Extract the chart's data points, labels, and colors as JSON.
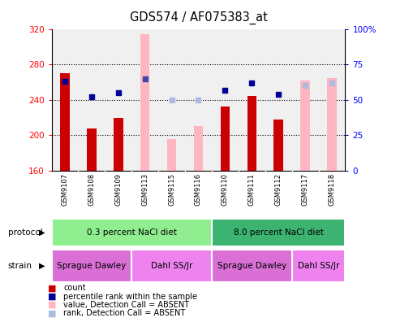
{
  "title": "GDS574 / AF075383_at",
  "samples": [
    "GSM9107",
    "GSM9108",
    "GSM9109",
    "GSM9113",
    "GSM9115",
    "GSM9116",
    "GSM9110",
    "GSM9111",
    "GSM9112",
    "GSM9117",
    "GSM9118"
  ],
  "count_present": [
    270,
    208,
    220,
    null,
    null,
    null,
    232,
    244,
    218,
    null,
    null
  ],
  "count_absent": [
    null,
    null,
    null,
    314,
    196,
    210,
    null,
    null,
    null,
    262,
    265
  ],
  "rank_present": [
    63,
    52,
    55,
    null,
    null,
    null,
    57,
    62,
    54,
    null,
    null
  ],
  "rank_absent_dark": [
    null,
    null,
    null,
    65,
    null,
    null,
    null,
    null,
    null,
    null,
    null
  ],
  "rank_absent_light": [
    null,
    null,
    null,
    null,
    50,
    50,
    null,
    null,
    null,
    60,
    62
  ],
  "ylim_left": [
    160,
    320
  ],
  "ylim_right": [
    0,
    100
  ],
  "yticks_left": [
    160,
    200,
    240,
    280,
    320
  ],
  "yticks_right": [
    0,
    25,
    50,
    75,
    100
  ],
  "protocol_groups": [
    {
      "label": "0.3 percent NaCl diet",
      "start": 0,
      "end": 5,
      "color": "#90EE90"
    },
    {
      "label": "8.0 percent NaCl diet",
      "start": 6,
      "end": 10,
      "color": "#3CB371"
    }
  ],
  "strain_groups": [
    {
      "label": "Sprague Dawley",
      "start": 0,
      "end": 2,
      "color": "#DA70D6"
    },
    {
      "label": "Dahl SS/Jr",
      "start": 3,
      "end": 5,
      "color": "#EE82EE"
    },
    {
      "label": "Sprague Dawley",
      "start": 6,
      "end": 8,
      "color": "#DA70D6"
    },
    {
      "label": "Dahl SS/Jr",
      "start": 9,
      "end": 10,
      "color": "#EE82EE"
    }
  ],
  "bar_color_present": "#CC0000",
  "bar_color_absent": "#FFB6C1",
  "dot_color_present": "#000099",
  "dot_color_absent_dark": "#4444AA",
  "dot_color_absent_light": "#AABBDD",
  "bar_width": 0.35,
  "background_color": "#FFFFFF",
  "plot_bg_color": "#F0F0F0",
  "label_bg_color": "#C8C8C8"
}
